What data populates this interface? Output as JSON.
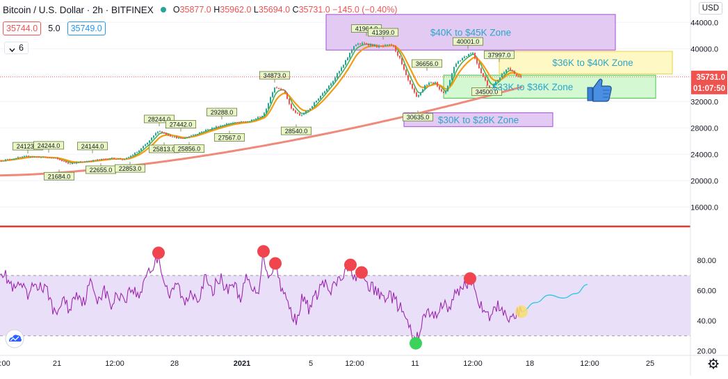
{
  "header": {
    "symbol_title": "Bitcoin / U.S. Dollar · 2h · BITFINEX",
    "ohlc": [
      {
        "label": "O",
        "value": "35877.0"
      },
      {
        "label": "H",
        "value": "35962.0"
      },
      {
        "label": "L",
        "value": "35694.0"
      },
      {
        "label": "C",
        "value": "35731.0"
      }
    ],
    "change": "−145.0 (−0.40%)",
    "bid": "35744.0",
    "spread": "5.0",
    "ask": "35749.0",
    "collapse_count": "6",
    "currency": "USD"
  },
  "colors": {
    "bull": "#26a69a",
    "bear": "#ef5350",
    "ema_fast": "#4caf50",
    "ema_slow": "#f39c12",
    "ma_long": "#ef8a7a",
    "rsi": "#9c27b0",
    "rsi_band": "#e1d2f7",
    "purple_box": "#d9b8ee",
    "yellow_box": "#fdf7b0",
    "green_box": "#c6f5c3",
    "zone_text": "#2aa6c9",
    "divider": "#e53935"
  },
  "chart_data": [
    {
      "type": "candlestick",
      "title": "Bitcoin / U.S. Dollar · 2h · BITFINEX",
      "y_ticks": [
        "44000.0",
        "40000.0",
        "36000.0",
        "32000.0",
        "28000.0",
        "24000.0",
        "20000.0",
        "16000.0"
      ],
      "ylim": [
        13500,
        45500
      ],
      "x_ticks": [
        "0:00",
        "21",
        "12:00",
        "28",
        "2021",
        "5",
        "12:00",
        "11",
        "12:00",
        "18",
        "12:00",
        "25"
      ],
      "last_price": "35731.0",
      "countdown": "01:07:50",
      "price_path": [
        [
          0,
          23000
        ],
        [
          40,
          23700
        ],
        [
          80,
          23400
        ],
        [
          100,
          22600
        ],
        [
          130,
          23000
        ],
        [
          160,
          23400
        ],
        [
          180,
          23200
        ],
        [
          200,
          24500
        ],
        [
          215,
          26000
        ],
        [
          228,
          27600
        ],
        [
          245,
          26800
        ],
        [
          262,
          26300
        ],
        [
          280,
          27000
        ],
        [
          300,
          27800
        ],
        [
          330,
          28700
        ],
        [
          360,
          29000
        ],
        [
          380,
          30000
        ],
        [
          395,
          34200
        ],
        [
          408,
          33800
        ],
        [
          420,
          30800
        ],
        [
          432,
          29800
        ],
        [
          445,
          30800
        ],
        [
          460,
          32700
        ],
        [
          480,
          35300
        ],
        [
          495,
          37600
        ],
        [
          510,
          40600
        ],
        [
          525,
          40800
        ],
        [
          545,
          40300
        ],
        [
          565,
          40600
        ],
        [
          575,
          38600
        ],
        [
          585,
          35700
        ],
        [
          600,
          32500
        ],
        [
          612,
          34500
        ],
        [
          625,
          35000
        ],
        [
          640,
          33000
        ],
        [
          655,
          37700
        ],
        [
          668,
          38800
        ],
        [
          680,
          39500
        ],
        [
          692,
          36500
        ],
        [
          705,
          33800
        ],
        [
          718,
          35500
        ],
        [
          730,
          37200
        ],
        [
          745,
          35700
        ]
      ],
      "price_labels": [
        {
          "x": 40,
          "y": 24123,
          "text": "24123.0",
          "pos": "above"
        },
        {
          "x": 70,
          "y": 24244,
          "text": "24244.0",
          "pos": "above"
        },
        {
          "x": 85,
          "y": 21684,
          "text": "21684.0",
          "pos": "below"
        },
        {
          "x": 133,
          "y": 24144,
          "text": "24144.0",
          "pos": "above"
        },
        {
          "x": 145,
          "y": 22655,
          "text": "22655.0",
          "pos": "below"
        },
        {
          "x": 187,
          "y": 22853,
          "text": "22853.0",
          "pos": "below"
        },
        {
          "x": 229,
          "y": 28244,
          "text": "28244.0",
          "pos": "above"
        },
        {
          "x": 236,
          "y": 25813,
          "text": "25813.0",
          "pos": "below"
        },
        {
          "x": 260,
          "y": 27442,
          "text": "27442.0",
          "pos": "above"
        },
        {
          "x": 272,
          "y": 25856,
          "text": "25856.0",
          "pos": "below"
        },
        {
          "x": 319,
          "y": 29288,
          "text": "29288.0",
          "pos": "above"
        },
        {
          "x": 330,
          "y": 27567,
          "text": "27567.0",
          "pos": "below"
        },
        {
          "x": 395,
          "y": 34873,
          "text": "34873.0",
          "pos": "above"
        },
        {
          "x": 426,
          "y": 28540,
          "text": "28540.0",
          "pos": "below"
        },
        {
          "x": 527,
          "y": 41964,
          "text": "41964.0",
          "pos": "above"
        },
        {
          "x": 551,
          "y": 41399,
          "text": "41399.0",
          "pos": "above"
        },
        {
          "x": 614,
          "y": 36656,
          "text": "36656.0",
          "pos": "above"
        },
        {
          "x": 601,
          "y": 30635,
          "text": "30635.0",
          "pos": "below"
        },
        {
          "x": 673,
          "y": 40001,
          "text": "40001.0",
          "pos": "above"
        },
        {
          "x": 718,
          "y": 37997,
          "text": "37997.0",
          "pos": "above"
        },
        {
          "x": 700,
          "y": 34500,
          "text": "34500.0",
          "pos": "below"
        }
      ],
      "zones": [
        {
          "label": "$40K to $45K Zone",
          "y_top": 45200,
          "y_bottom": 39800,
          "x_start": 469,
          "x_end": 885,
          "style": "purple"
        },
        {
          "label": "$36K to $40K Zone",
          "y_top": 39600,
          "y_bottom": 36200,
          "x_start": 718,
          "x_end": 967,
          "style": "yellow"
        },
        {
          "label": "$33K to $36K Zone",
          "y_top": 36000,
          "y_bottom": 32500,
          "x_start": 638,
          "x_end": 943,
          "style": "green"
        },
        {
          "label": "$30K to $28K Zone",
          "y_top": 30300,
          "y_bottom": 28200,
          "x_start": 581,
          "x_end": 795,
          "style": "purple"
        }
      ]
    },
    {
      "type": "line",
      "indicator": "RSI",
      "y_ticks": [
        "80.00",
        "60.00",
        "40.00",
        "20.00"
      ],
      "ylim": [
        17,
        98
      ],
      "band": [
        30,
        70
      ],
      "series": [
        {
          "values_path": [
            [
              0,
              75
            ],
            [
              10,
              68
            ],
            [
              20,
              60
            ],
            [
              30,
              64
            ],
            [
              40,
              55
            ],
            [
              50,
              65
            ],
            [
              60,
              62
            ],
            [
              70,
              58
            ],
            [
              80,
              42
            ],
            [
              90,
              55
            ],
            [
              100,
              47
            ],
            [
              110,
              60
            ],
            [
              120,
              52
            ],
            [
              130,
              65
            ],
            [
              140,
              55
            ],
            [
              150,
              60
            ],
            [
              160,
              50
            ],
            [
              170,
              58
            ],
            [
              180,
              55
            ],
            [
              190,
              62
            ],
            [
              200,
              55
            ],
            [
              210,
              72
            ],
            [
              220,
              75
            ],
            [
              228,
              84
            ],
            [
              235,
              68
            ],
            [
              245,
              55
            ],
            [
              255,
              66
            ],
            [
              265,
              50
            ],
            [
              275,
              60
            ],
            [
              285,
              55
            ],
            [
              295,
              68
            ],
            [
              305,
              58
            ],
            [
              315,
              70
            ],
            [
              325,
              60
            ],
            [
              335,
              66
            ],
            [
              345,
              55
            ],
            [
              355,
              68
            ],
            [
              365,
              58
            ],
            [
              372,
              62
            ],
            [
              379,
              85
            ],
            [
              385,
              70
            ],
            [
              396,
              77
            ],
            [
              405,
              62
            ],
            [
              415,
              50
            ],
            [
              425,
              40
            ],
            [
              435,
              55
            ],
            [
              445,
              48
            ],
            [
              455,
              57
            ],
            [
              465,
              66
            ],
            [
              475,
              58
            ],
            [
              485,
              66
            ],
            [
              495,
              70
            ],
            [
              504,
              76
            ],
            [
              512,
              68
            ],
            [
              520,
              71
            ],
            [
              530,
              63
            ],
            [
              540,
              60
            ],
            [
              550,
              55
            ],
            [
              560,
              58
            ],
            [
              570,
              52
            ],
            [
              580,
              45
            ],
            [
              590,
              33
            ],
            [
              598,
              25
            ],
            [
              606,
              38
            ],
            [
              615,
              46
            ],
            [
              625,
              42
            ],
            [
              635,
              52
            ],
            [
              645,
              48
            ],
            [
              655,
              57
            ],
            [
              665,
              63
            ],
            [
              676,
              67
            ],
            [
              685,
              60
            ],
            [
              695,
              44
            ],
            [
              705,
              42
            ],
            [
              715,
              50
            ],
            [
              725,
              47
            ],
            [
              735,
              40
            ],
            [
              742,
              45
            ],
            [
              750,
              46
            ]
          ]
        },
        {
          "name": "projection",
          "values_path": [
            [
              750,
              46
            ],
            [
              770,
              52
            ],
            [
              790,
              57
            ],
            [
              810,
              55
            ],
            [
              828,
              58
            ],
            [
              845,
              64
            ]
          ]
        }
      ],
      "markers": [
        {
          "x": 228,
          "y": 85,
          "type": "peak"
        },
        {
          "x": 379,
          "y": 86,
          "type": "peak"
        },
        {
          "x": 396,
          "y": 78,
          "type": "peak"
        },
        {
          "x": 504,
          "y": 77,
          "type": "peak"
        },
        {
          "x": 520,
          "y": 72,
          "type": "peak"
        },
        {
          "x": 676,
          "y": 68,
          "type": "peak"
        },
        {
          "x": 598,
          "y": 25,
          "type": "trough"
        },
        {
          "x": 750,
          "y": 46,
          "type": "current"
        }
      ]
    }
  ],
  "icons": {
    "thumbs_up": "thumbs-up-icon",
    "settings": "gear-icon",
    "logo": "tradingview-cloud-icon"
  }
}
